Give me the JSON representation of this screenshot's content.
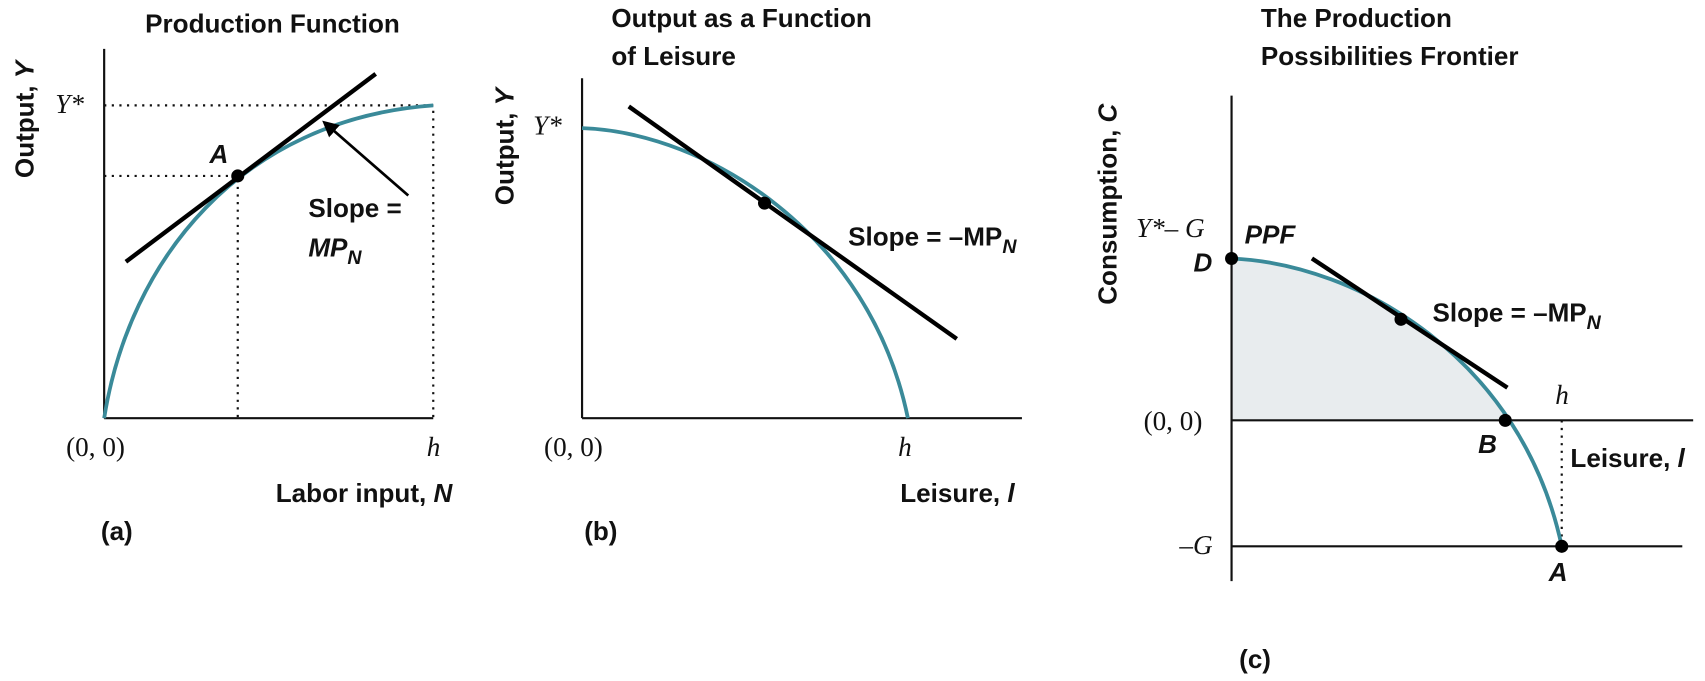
{
  "panels": [
    {
      "caption": "(a)",
      "title": [
        "Production Function"
      ],
      "y_axis": {
        "label": "Output,",
        "var": "Y"
      },
      "x_axis": {
        "label": "Labor input,",
        "var": "N"
      },
      "origin": "(0, 0)",
      "x_end": "h",
      "y_mark": "Y*",
      "point": "A",
      "slope": {
        "lines": [
          "Slope =",
          "MP"
        ],
        "sub": "N"
      }
    },
    {
      "caption": "(b)",
      "title": [
        "Output as a Function",
        "of Leisure"
      ],
      "y_axis": {
        "label": "Output,",
        "var": "Y"
      },
      "x_axis": {
        "label": "Leisure,",
        "var": "l"
      },
      "origin": "(0, 0)",
      "x_end": "h",
      "y_mark": "Y*",
      "slope": {
        "text": "Slope = –MP",
        "sub": "N"
      }
    },
    {
      "caption": "(c)",
      "title": [
        "The Production",
        "Possibilities Frontier"
      ],
      "y_axis": {
        "label": "Consumption,",
        "var": "C"
      },
      "x_axis": {
        "label": "Leisure,",
        "var": "l"
      },
      "origin": "(0, 0)",
      "x_end": "h",
      "y_mark": "Y*– G",
      "y_low": "–G",
      "curve_label": "PPF",
      "points": [
        "D",
        "B",
        "A"
      ],
      "slope": {
        "text": "Slope = –MP",
        "sub": "N"
      }
    }
  ]
}
